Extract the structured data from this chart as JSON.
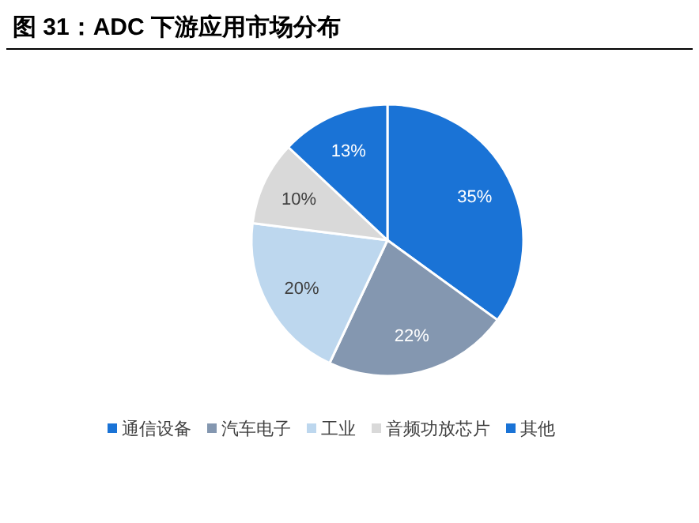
{
  "chart_data": {
    "type": "pie",
    "title": "图 31：ADC 下游应用市场分布",
    "categories": [
      "通信设备",
      "汽车电子",
      "工业",
      "音频功放芯片",
      "其他"
    ],
    "values": [
      35,
      22,
      20,
      10,
      13
    ],
    "colors": [
      "#1a73d6",
      "#8497b0",
      "#bdd7ee",
      "#d9d9d9",
      "#1a73d6"
    ],
    "value_labels": [
      "35%",
      "22%",
      "20%",
      "10%",
      "13%"
    ],
    "legend": "bottom"
  }
}
